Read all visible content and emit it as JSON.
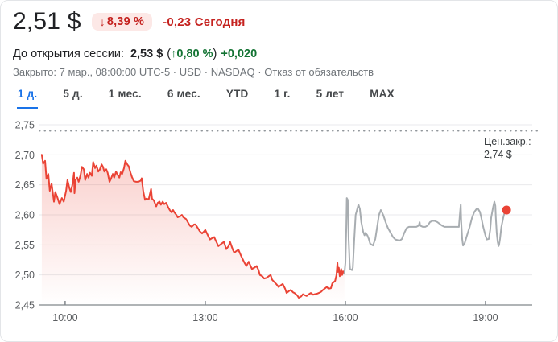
{
  "header": {
    "price": "2,51 $",
    "badge_arrow": "↓",
    "badge_pct": "8,39 %",
    "change_today": "-0,23 Сегодня"
  },
  "premarket": {
    "label": "До открытия сессии:",
    "price": "2,53 $",
    "paren_open": "(",
    "arrow": "↑",
    "pct": "0,80 %",
    "paren_close": ")",
    "change": "+0,020"
  },
  "status": {
    "closed_text": "Закрыто: 7 мар., 08:00:00 UTC-5 · USD · NASDAQ ·",
    "disclaimer": "Отказ от обязательств"
  },
  "tabs": {
    "labels": [
      "1 д.",
      "5 д.",
      "1 мес.",
      "6 мес.",
      "YTD",
      "1 г.",
      "5 лет",
      "MAX"
    ],
    "active": "1 д."
  },
  "colors": {
    "negative_red": "#c5221f",
    "badge_bg": "#fce8e6",
    "positive_green": "#137333",
    "active_tab_blue": "#1a73e8",
    "regular_line": "#ea4335",
    "after_hours_line": "#a8adb1"
  },
  "chart_data": {
    "type": "line",
    "title": "Intraday price, 1 day range",
    "x_axis": {
      "range": [
        9.45,
        20.0
      ],
      "ticks": [
        {
          "h": 10,
          "label": "10:00"
        },
        {
          "h": 13,
          "label": "13:00"
        },
        {
          "h": 16,
          "label": "16:00"
        },
        {
          "h": 19,
          "label": "19:00"
        }
      ]
    },
    "y_axis": {
      "range": [
        2.45,
        2.75
      ],
      "ticks": [
        {
          "v": 2.45,
          "label": "2,45"
        },
        {
          "v": 2.5,
          "label": "2,50"
        },
        {
          "v": 2.55,
          "label": "2,55"
        },
        {
          "v": 2.6,
          "label": "2,60"
        },
        {
          "v": 2.65,
          "label": "2,65"
        },
        {
          "v": 2.7,
          "label": "2,70"
        },
        {
          "v": 2.75,
          "label": "2,75"
        }
      ]
    },
    "prev_close": {
      "value": 2.74,
      "label_lines": [
        "Цен.закр.:",
        "2,74 $"
      ]
    },
    "layout": {
      "plot_left": 48,
      "plot_right": 660,
      "plot_top": 14,
      "plot_bottom": 238,
      "dotted_right": 672,
      "prev_label_x": 600,
      "grid": "horizontal-only",
      "legend": "none"
    },
    "colors": {
      "regular": "#ea4335",
      "after_hours": "#a8adb1",
      "fill_top": "rgba(234,67,53,0.30)",
      "fill_bottom": "rgba(234,67,53,0)",
      "grid": "#e9eaec",
      "axis": "#80868b",
      "dot": "#ea4335",
      "tick_text": "#5b5e61",
      "prev_close_text": "#3c4043"
    },
    "series": [
      {
        "name": "regular-session",
        "fill": true,
        "points": [
          [
            9.5,
            2.7
          ],
          [
            9.53,
            2.685
          ],
          [
            9.57,
            2.69
          ],
          [
            9.6,
            2.66
          ],
          [
            9.64,
            2.668
          ],
          [
            9.67,
            2.64
          ],
          [
            9.71,
            2.652
          ],
          [
            9.76,
            2.622
          ],
          [
            9.79,
            2.638
          ],
          [
            9.83,
            2.63
          ],
          [
            9.88,
            2.618
          ],
          [
            9.93,
            2.628
          ],
          [
            9.97,
            2.622
          ],
          [
            10.02,
            2.64
          ],
          [
            10.05,
            2.658
          ],
          [
            10.09,
            2.645
          ],
          [
            10.12,
            2.638
          ],
          [
            10.16,
            2.652
          ],
          [
            10.19,
            2.67
          ],
          [
            10.2,
            2.636
          ],
          [
            10.22,
            2.658
          ],
          [
            10.26,
            2.662
          ],
          [
            10.29,
            2.655
          ],
          [
            10.33,
            2.666
          ],
          [
            10.36,
            2.68
          ],
          [
            10.4,
            2.676
          ],
          [
            10.43,
            2.658
          ],
          [
            10.47,
            2.668
          ],
          [
            10.5,
            2.662
          ],
          [
            10.53,
            2.67
          ],
          [
            10.57,
            2.665
          ],
          [
            10.6,
            2.688
          ],
          [
            10.64,
            2.678
          ],
          [
            10.67,
            2.682
          ],
          [
            10.71,
            2.672
          ],
          [
            10.74,
            2.675
          ],
          [
            10.78,
            2.684
          ],
          [
            10.81,
            2.68
          ],
          [
            10.84,
            2.672
          ],
          [
            10.88,
            2.676
          ],
          [
            10.91,
            2.67
          ],
          [
            10.95,
            2.655
          ],
          [
            10.98,
            2.66
          ],
          [
            11.02,
            2.668
          ],
          [
            11.05,
            2.662
          ],
          [
            11.09,
            2.672
          ],
          [
            11.12,
            2.667
          ],
          [
            11.16,
            2.662
          ],
          [
            11.19,
            2.671
          ],
          [
            11.22,
            2.668
          ],
          [
            11.26,
            2.678
          ],
          [
            11.29,
            2.69
          ],
          [
            11.33,
            2.684
          ],
          [
            11.36,
            2.681
          ],
          [
            11.4,
            2.67
          ],
          [
            11.43,
            2.663
          ],
          [
            11.47,
            2.656
          ],
          [
            11.52,
            2.655
          ],
          [
            11.57,
            2.655
          ],
          [
            11.62,
            2.657
          ],
          [
            11.64,
            2.661
          ],
          [
            11.67,
            2.64
          ],
          [
            11.71,
            2.625
          ],
          [
            11.74,
            2.627
          ],
          [
            11.79,
            2.626
          ],
          [
            11.84,
            2.643
          ],
          [
            11.86,
            2.627
          ],
          [
            11.9,
            2.624
          ],
          [
            11.95,
            2.614
          ],
          [
            11.98,
            2.62
          ],
          [
            12.02,
            2.622
          ],
          [
            12.05,
            2.617
          ],
          [
            12.09,
            2.622
          ],
          [
            12.12,
            2.618
          ],
          [
            12.16,
            2.62
          ],
          [
            12.21,
            2.612
          ],
          [
            12.24,
            2.608
          ],
          [
            12.28,
            2.604
          ],
          [
            12.31,
            2.608
          ],
          [
            12.34,
            2.604
          ],
          [
            12.38,
            2.6
          ],
          [
            12.41,
            2.596
          ],
          [
            12.47,
            2.598
          ],
          [
            12.5,
            2.6
          ],
          [
            12.53,
            2.596
          ],
          [
            12.59,
            2.593
          ],
          [
            12.64,
            2.586
          ],
          [
            12.67,
            2.582
          ],
          [
            12.71,
            2.58
          ],
          [
            12.76,
            2.584
          ],
          [
            12.79,
            2.584
          ],
          [
            12.84,
            2.578
          ],
          [
            12.88,
            2.573
          ],
          [
            12.93,
            2.569
          ],
          [
            12.97,
            2.572
          ],
          [
            13.0,
            2.575
          ],
          [
            13.03,
            2.57
          ],
          [
            13.1,
            2.559
          ],
          [
            13.14,
            2.561
          ],
          [
            13.19,
            2.563
          ],
          [
            13.22,
            2.558
          ],
          [
            13.28,
            2.548
          ],
          [
            13.33,
            2.551
          ],
          [
            13.4,
            2.555
          ],
          [
            13.45,
            2.543
          ],
          [
            13.5,
            2.548
          ],
          [
            13.53,
            2.555
          ],
          [
            13.59,
            2.542
          ],
          [
            13.62,
            2.537
          ],
          [
            13.67,
            2.54
          ],
          [
            13.71,
            2.542
          ],
          [
            13.76,
            2.533
          ],
          [
            13.79,
            2.528
          ],
          [
            13.84,
            2.52
          ],
          [
            13.88,
            2.515
          ],
          [
            13.93,
            2.522
          ],
          [
            13.97,
            2.515
          ],
          [
            14.0,
            2.51
          ],
          [
            14.05,
            2.512
          ],
          [
            14.1,
            2.515
          ],
          [
            14.14,
            2.508
          ],
          [
            14.17,
            2.5
          ],
          [
            14.22,
            2.498
          ],
          [
            14.26,
            2.494
          ],
          [
            14.31,
            2.495
          ],
          [
            14.36,
            2.498
          ],
          [
            14.4,
            2.5
          ],
          [
            14.43,
            2.492
          ],
          [
            14.48,
            2.488
          ],
          [
            14.53,
            2.484
          ],
          [
            14.57,
            2.48
          ],
          [
            14.62,
            2.483
          ],
          [
            14.66,
            2.485
          ],
          [
            14.71,
            2.477
          ],
          [
            14.74,
            2.47
          ],
          [
            14.79,
            2.473
          ],
          [
            14.83,
            2.475
          ],
          [
            14.88,
            2.471
          ],
          [
            14.91,
            2.47
          ],
          [
            14.97,
            2.466
          ],
          [
            15.0,
            2.462
          ],
          [
            15.05,
            2.464
          ],
          [
            15.09,
            2.468
          ],
          [
            15.14,
            2.466
          ],
          [
            15.17,
            2.465
          ],
          [
            15.22,
            2.468
          ],
          [
            15.26,
            2.47
          ],
          [
            15.31,
            2.467
          ],
          [
            15.34,
            2.468
          ],
          [
            15.4,
            2.469
          ],
          [
            15.43,
            2.47
          ],
          [
            15.48,
            2.472
          ],
          [
            15.52,
            2.475
          ],
          [
            15.57,
            2.478
          ],
          [
            15.6,
            2.48
          ],
          [
            15.64,
            2.477
          ],
          [
            15.69,
            2.478
          ],
          [
            15.72,
            2.486
          ],
          [
            15.78,
            2.49
          ],
          [
            15.81,
            2.5
          ],
          [
            15.83,
            2.52
          ],
          [
            15.84,
            2.505
          ],
          [
            15.86,
            2.512
          ],
          [
            15.88,
            2.498
          ],
          [
            15.9,
            2.505
          ],
          [
            15.91,
            2.51
          ],
          [
            15.93,
            2.5
          ],
          [
            15.95,
            2.506
          ],
          [
            15.98,
            2.503
          ]
        ]
      },
      {
        "name": "after-hours",
        "fill": false,
        "end_dot": true,
        "points": [
          [
            15.98,
            2.503
          ],
          [
            16.0,
            2.52
          ],
          [
            16.02,
            2.58
          ],
          [
            16.03,
            2.628
          ],
          [
            16.05,
            2.625
          ],
          [
            16.07,
            2.56
          ],
          [
            16.09,
            2.52
          ],
          [
            16.1,
            2.51
          ],
          [
            16.14,
            2.508
          ],
          [
            16.16,
            2.512
          ],
          [
            16.19,
            2.56
          ],
          [
            16.22,
            2.6
          ],
          [
            16.28,
            2.617
          ],
          [
            16.31,
            2.61
          ],
          [
            16.34,
            2.588
          ],
          [
            16.38,
            2.572
          ],
          [
            16.41,
            2.566
          ],
          [
            16.43,
            2.57
          ],
          [
            16.47,
            2.566
          ],
          [
            16.5,
            2.56
          ],
          [
            16.53,
            2.552
          ],
          [
            16.59,
            2.549
          ],
          [
            16.64,
            2.56
          ],
          [
            16.69,
            2.585
          ],
          [
            16.72,
            2.6
          ],
          [
            16.76,
            2.608
          ],
          [
            16.81,
            2.6
          ],
          [
            16.86,
            2.588
          ],
          [
            16.91,
            2.578
          ],
          [
            16.97,
            2.57
          ],
          [
            17.02,
            2.563
          ],
          [
            17.07,
            2.559
          ],
          [
            17.12,
            2.558
          ],
          [
            17.16,
            2.557
          ],
          [
            17.21,
            2.56
          ],
          [
            17.26,
            2.57
          ],
          [
            17.31,
            2.578
          ],
          [
            17.36,
            2.58
          ],
          [
            17.41,
            2.58
          ],
          [
            17.47,
            2.58
          ],
          [
            17.52,
            2.58
          ],
          [
            17.57,
            2.582
          ],
          [
            17.59,
            2.588
          ],
          [
            17.6,
            2.582
          ],
          [
            17.66,
            2.58
          ],
          [
            17.71,
            2.58
          ],
          [
            17.76,
            2.582
          ],
          [
            17.81,
            2.588
          ],
          [
            17.86,
            2.59
          ],
          [
            17.91,
            2.59
          ],
          [
            17.97,
            2.588
          ],
          [
            18.02,
            2.585
          ],
          [
            18.07,
            2.582
          ],
          [
            18.12,
            2.58
          ],
          [
            18.17,
            2.58
          ],
          [
            18.22,
            2.58
          ],
          [
            18.28,
            2.58
          ],
          [
            18.33,
            2.58
          ],
          [
            18.38,
            2.58
          ],
          [
            18.43,
            2.58
          ],
          [
            18.45,
            2.6
          ],
          [
            18.47,
            2.617
          ],
          [
            18.48,
            2.59
          ],
          [
            18.5,
            2.56
          ],
          [
            18.52,
            2.549
          ],
          [
            18.55,
            2.552
          ],
          [
            18.6,
            2.565
          ],
          [
            18.66,
            2.58
          ],
          [
            18.71,
            2.595
          ],
          [
            18.76,
            2.605
          ],
          [
            18.81,
            2.61
          ],
          [
            18.84,
            2.61
          ],
          [
            18.88,
            2.605
          ],
          [
            18.91,
            2.595
          ],
          [
            18.95,
            2.58
          ],
          [
            19.0,
            2.565
          ],
          [
            19.03,
            2.559
          ],
          [
            19.07,
            2.56
          ],
          [
            19.1,
            2.575
          ],
          [
            19.12,
            2.595
          ],
          [
            19.16,
            2.612
          ],
          [
            19.19,
            2.622
          ],
          [
            19.21,
            2.615
          ],
          [
            19.22,
            2.595
          ],
          [
            19.24,
            2.57
          ],
          [
            19.26,
            2.555
          ],
          [
            19.28,
            2.548
          ],
          [
            19.29,
            2.55
          ],
          [
            19.31,
            2.56
          ],
          [
            19.34,
            2.58
          ],
          [
            19.38,
            2.595
          ],
          [
            19.41,
            2.605
          ],
          [
            19.45,
            2.608
          ]
        ]
      }
    ]
  }
}
